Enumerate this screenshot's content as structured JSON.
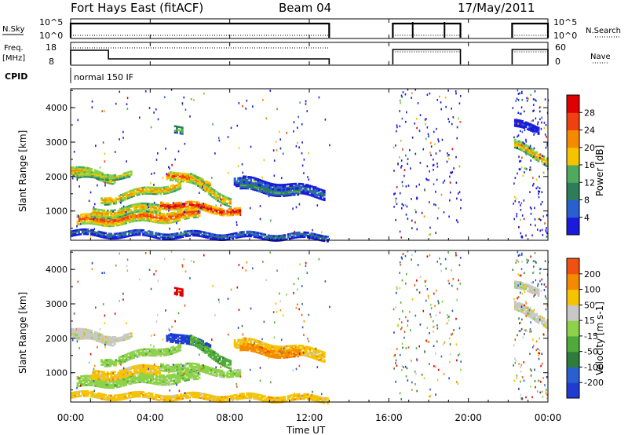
{
  "header": {
    "title": "Fort Hays East (fitACF)",
    "beam": "Beam 04",
    "date": "17/May/2011"
  },
  "strip": {
    "nsky_label": "N.Sky",
    "nsky_ticks": [
      "10^5",
      "10^0"
    ],
    "nsearch_label": "N.Search",
    "nsearch_ticks": [
      "10^5",
      "10^0"
    ],
    "freq_label": "Freq.",
    "freq_unit": "[MHz]",
    "freq_ticks": [
      "18",
      "8"
    ],
    "nave_label": "Nave",
    "nave_ticks": [
      "60",
      "0"
    ],
    "cpid_label": "CPID",
    "cpid_value": "normal 150 IF"
  },
  "colors": {
    "power_scale": [
      "#1a1adc",
      "#2a5fd0",
      "#2e7d5a",
      "#4faa5e",
      "#7fd24a",
      "#f5c300",
      "#f58a00",
      "#f04010",
      "#e00000"
    ],
    "velocity_scale": [
      "#1e3cd2",
      "#2a5fd0",
      "#2e7d3a",
      "#4faa3a",
      "#8ed24a",
      "#c8c8c8",
      "#f5c300",
      "#f58a00",
      "#f05010",
      "#e00000"
    ]
  },
  "chart_data": [
    {
      "type": "heatmap",
      "name_quantity": "Power",
      "ylabel": "Slant Range [km]",
      "yticks": [
        "1000",
        "2000",
        "3000",
        "4000"
      ],
      "ylim": [
        150,
        4550
      ],
      "xlim_hours": [
        0,
        24
      ],
      "colorbar_label": "Power [dB]",
      "colorbar_ticks": [
        "4",
        "8",
        "12",
        "16",
        "20",
        "24",
        "28"
      ],
      "data_gaps_UT": [
        [
          "13:00",
          "16:10"
        ],
        [
          "19:40",
          "22:10"
        ]
      ]
    },
    {
      "type": "heatmap",
      "name_quantity": "Velocity",
      "ylabel": "Slant Range [km]",
      "yticks": [
        "1000",
        "2000",
        "3000",
        "4000"
      ],
      "ylim": [
        150,
        4550
      ],
      "xlim_hours": [
        0,
        24
      ],
      "xlabel": "Time UT",
      "xticks": [
        "00:00",
        "04:00",
        "08:00",
        "12:00",
        "16:00",
        "20:00",
        "00:00"
      ],
      "colorbar_label": "Velocity [m s-1]",
      "colorbar_ticks": [
        "200",
        "100",
        "50",
        "15",
        "-15",
        "-50",
        "-100",
        "-200"
      ]
    }
  ]
}
